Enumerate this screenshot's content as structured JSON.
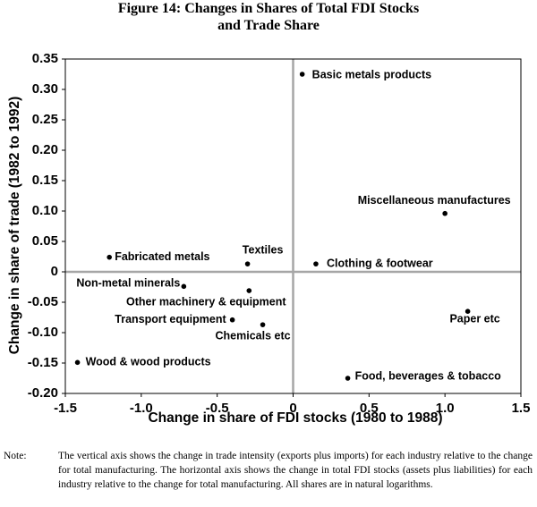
{
  "chart_data": {
    "type": "scatter",
    "title": "Figure 14: Changes in Shares of Total FDI Stocks and Trade Share",
    "x_label": "Change in share of FDI stocks (1980 to 1988)",
    "y_label": "Change in share of trade (1982 to 1992)",
    "labels": [
      "Basic metals products",
      "Miscellaneous manufactures",
      "Fabricated metals",
      "Textiles",
      "Clothing & footwear",
      "Non-metal minerals",
      "Other machinery & equipment",
      "Transport equipment",
      "Chemicals etc",
      "Paper etc",
      "Wood & wood products",
      "Food, beverages & tobacco"
    ],
    "x": [
      0.06,
      1.0,
      -1.21,
      -0.3,
      0.15,
      -0.72,
      -0.29,
      -0.4,
      -0.2,
      1.15,
      -1.42,
      0.36
    ],
    "values": [
      0.325,
      0.096,
      0.024,
      0.013,
      0.013,
      -0.024,
      -0.031,
      -0.079,
      -0.087,
      -0.065,
      -0.149,
      -0.175
    ],
    "color": "#000000",
    "xlim": [
      -1.5,
      1.5
    ],
    "xticks": [
      -1.5,
      {
        "value": -1.0,
        "label": "-1.0"
      },
      -0.5,
      0,
      0.5,
      {
        "value": 1.0,
        "label": "1.0"
      },
      1.5
    ],
    "ylim": [
      -0.2,
      0.35
    ],
    "yticks": [
      {
        "value": -0.2,
        "label": "-0.20"
      },
      -0.15,
      {
        "value": -0.1,
        "label": "-0.10"
      },
      -0.05,
      0,
      0.05,
      {
        "value": 0.1,
        "label": "0.10"
      },
      0.15,
      {
        "value": 0.2,
        "label": "0.20"
      },
      0.25,
      {
        "value": 0.3,
        "label": "0.30"
      },
      0.35
    ],
    "note_label": "Note:",
    "note": "The vertical axis shows the change in trade intensity (exports plus imports) for each industry relative to the change for total manufacturing. The horizontal axis shows the change in total FDI stocks (assets plus liabilities) for each industry relative to the change for total manufacturing. All shares are in natural logarithms."
  }
}
